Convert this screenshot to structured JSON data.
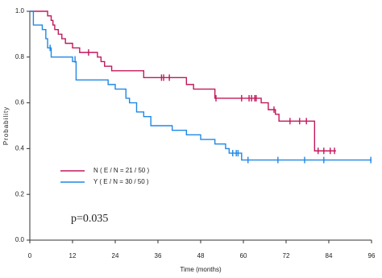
{
  "chart_data": {
    "type": "line",
    "step": "post",
    "xlabel": "Time (months)",
    "ylabel": "Probability",
    "annotation": "p=0.035",
    "xlim": [
      0,
      96
    ],
    "ylim": [
      0,
      1
    ],
    "xticks": [
      0,
      12,
      24,
      36,
      48,
      60,
      72,
      84,
      96
    ],
    "yticks": [
      {
        "value": 0,
        "label": "0.0"
      },
      0.2,
      0.4,
      0.6,
      0.8,
      {
        "value": 1,
        "label": "1.0"
      }
    ],
    "series": [
      {
        "name": "N ( E / N = 21 / 50 )",
        "color": "#c2185b",
        "x": [
          0,
          5,
          6,
          6.5,
          7,
          8,
          9,
          10,
          12,
          14,
          19,
          20,
          21,
          23,
          32,
          44,
          46,
          52,
          65,
          67,
          69,
          70,
          80,
          86
        ],
        "values": [
          1.0,
          0.98,
          0.96,
          0.94,
          0.92,
          0.9,
          0.88,
          0.86,
          0.84,
          0.82,
          0.8,
          0.78,
          0.76,
          0.74,
          0.71,
          0.68,
          0.66,
          0.62,
          0.6,
          0.57,
          0.55,
          0.52,
          0.39,
          0.39
        ],
        "censor_x": [
          16.5,
          37,
          37.6,
          39.2,
          52.3,
          59.5,
          61.6,
          62.3,
          63.2,
          63.6,
          68.6,
          73.1,
          75.8,
          77.7,
          81,
          82.6,
          84.4,
          85.6
        ],
        "censor_values": [
          0.82,
          0.71,
          0.71,
          0.71,
          0.62,
          0.62,
          0.62,
          0.62,
          0.62,
          0.62,
          0.57,
          0.52,
          0.52,
          0.52,
          0.39,
          0.39,
          0.39,
          0.39
        ]
      },
      {
        "name": "Y ( E / N = 30 / 50 )",
        "color": "#1e88e5",
        "x": [
          0,
          1,
          3.5,
          4.5,
          5,
          6,
          12,
          13,
          22,
          24,
          27,
          28,
          30,
          32,
          34,
          40,
          44,
          48,
          52,
          55,
          56,
          59.5,
          96
        ],
        "values": [
          1.0,
          0.94,
          0.92,
          0.88,
          0.84,
          0.8,
          0.78,
          0.7,
          0.68,
          0.66,
          0.62,
          0.6,
          0.56,
          0.54,
          0.5,
          0.48,
          0.46,
          0.44,
          0.42,
          0.4,
          0.38,
          0.35,
          0.35
        ],
        "censor_x": [
          5.7,
          12.7,
          57,
          58,
          58.5,
          61.3,
          69.7,
          77.2,
          82.6,
          95.8
        ],
        "censor_values": [
          0.84,
          0.79,
          0.38,
          0.38,
          0.38,
          0.35,
          0.35,
          0.35,
          0.35,
          0.35
        ]
      }
    ]
  }
}
